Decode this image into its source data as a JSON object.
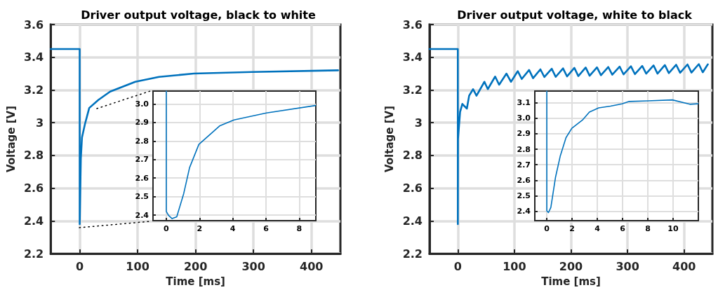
{
  "chart_data": [
    {
      "type": "line",
      "title": "Driver output voltage, black to white",
      "xlabel": "Time [ms]",
      "ylabel": "Voltage [V]",
      "xlim": [
        -50,
        450
      ],
      "ylim": [
        2.2,
        3.6
      ],
      "xticks": [
        0,
        100,
        200,
        300,
        400
      ],
      "yticks": [
        2.2,
        2.4,
        2.6,
        2.8,
        3,
        3.2,
        3.4,
        3.6
      ],
      "grid": true,
      "series": [
        {
          "color": "#0072bd",
          "x": [
            -50,
            0,
            0.05,
            0.4,
            2,
            4,
            9,
            16.5,
            32.5,
            52.6,
            96,
            137,
            197,
            298,
            446
          ],
          "values": [
            3.45,
            3.45,
            2.38,
            2.38,
            2.78,
            2.91,
            2.99,
            3.09,
            3.14,
            3.19,
            3.25,
            3.28,
            3.3,
            3.31,
            3.32
          ]
        }
      ]
    },
    {
      "type": "line",
      "xlim": [
        -0.8,
        9
      ],
      "ylim": [
        2.37,
        3.07
      ],
      "xticks": [
        0,
        2,
        4,
        6,
        8
      ],
      "yticks": [
        2.4,
        2.5,
        2.6,
        2.7,
        2.8,
        2.9,
        {
          "value": 3,
          "label": "3.0"
        }
      ],
      "grid": true,
      "series": [
        {
          "color": "#0072bd",
          "x": [
            0,
            0,
            0.14,
            0.35,
            0.63,
            1.05,
            1.4,
            1.96,
            3.23,
            4.07,
            6.03,
            8.98
          ],
          "values": [
            3.07,
            2.42,
            2.398,
            2.381,
            2.391,
            2.517,
            2.656,
            2.782,
            2.883,
            2.914,
            2.952,
            2.992
          ]
        }
      ]
    },
    {
      "type": "line",
      "title": "Driver output voltage, white to black",
      "xlabel": "Time [ms]",
      "ylabel": "Voltage [V]",
      "xlim": [
        -50,
        450
      ],
      "ylim": [
        2.2,
        3.6
      ],
      "xticks": [
        0,
        100,
        200,
        300,
        400
      ],
      "yticks": [
        2.2,
        2.4,
        2.6,
        2.8,
        3,
        3.2,
        3.4,
        3.6
      ],
      "grid": true,
      "series": [
        {
          "color": "#0072bd",
          "x": [
            -50,
            0,
            0.05,
            0.3,
            4,
            8,
            12,
            16,
            20,
            27,
            33,
            47,
            53,
            66,
            73,
            86,
            94,
            106,
            113,
            126,
            133,
            146,
            153,
            166,
            173,
            186,
            193,
            206,
            213,
            226,
            233,
            246,
            253,
            266,
            273,
            286,
            293,
            306,
            313,
            326,
            333,
            346,
            353,
            366,
            373,
            386,
            393,
            406,
            413,
            426,
            433,
            442
          ],
          "values": [
            3.45,
            3.45,
            2.38,
            2.9,
            3.065,
            3.115,
            3.1,
            3.086,
            3.165,
            3.205,
            3.165,
            3.25,
            3.205,
            3.282,
            3.232,
            3.3,
            3.25,
            3.315,
            3.267,
            3.322,
            3.272,
            3.326,
            3.279,
            3.33,
            3.28,
            3.332,
            3.283,
            3.335,
            3.285,
            3.337,
            3.287,
            3.338,
            3.29,
            3.34,
            3.293,
            3.343,
            3.295,
            3.345,
            3.297,
            3.347,
            3.3,
            3.35,
            3.3,
            3.352,
            3.303,
            3.354,
            3.305,
            3.356,
            3.306,
            3.358,
            3.308,
            3.357
          ]
        }
      ]
    },
    {
      "type": "line",
      "xlim": [
        -0.95,
        12
      ],
      "ylim": [
        2.34,
        3.175
      ],
      "xticks": [
        0,
        2,
        4,
        6,
        8,
        10
      ],
      "yticks": [
        2.4,
        2.5,
        2.6,
        2.7,
        2.8,
        2.9,
        {
          "value": 3,
          "label": "3.0"
        },
        3.1
      ],
      "grid": true,
      "series": [
        {
          "color": "#0072bd",
          "x": [
            0,
            0,
            0.13,
            0.32,
            0.69,
            1.06,
            1.52,
            1.98,
            2.82,
            3.37,
            4.11,
            5.04,
            5.96,
            6.52,
            8,
            9.94,
            11.33,
            11.98
          ],
          "values": [
            3.175,
            2.403,
            2.392,
            2.425,
            2.62,
            2.755,
            2.875,
            2.935,
            2.988,
            3.04,
            3.067,
            3.078,
            3.093,
            3.108,
            3.112,
            3.118,
            3.09,
            3.093
          ]
        }
      ]
    }
  ]
}
